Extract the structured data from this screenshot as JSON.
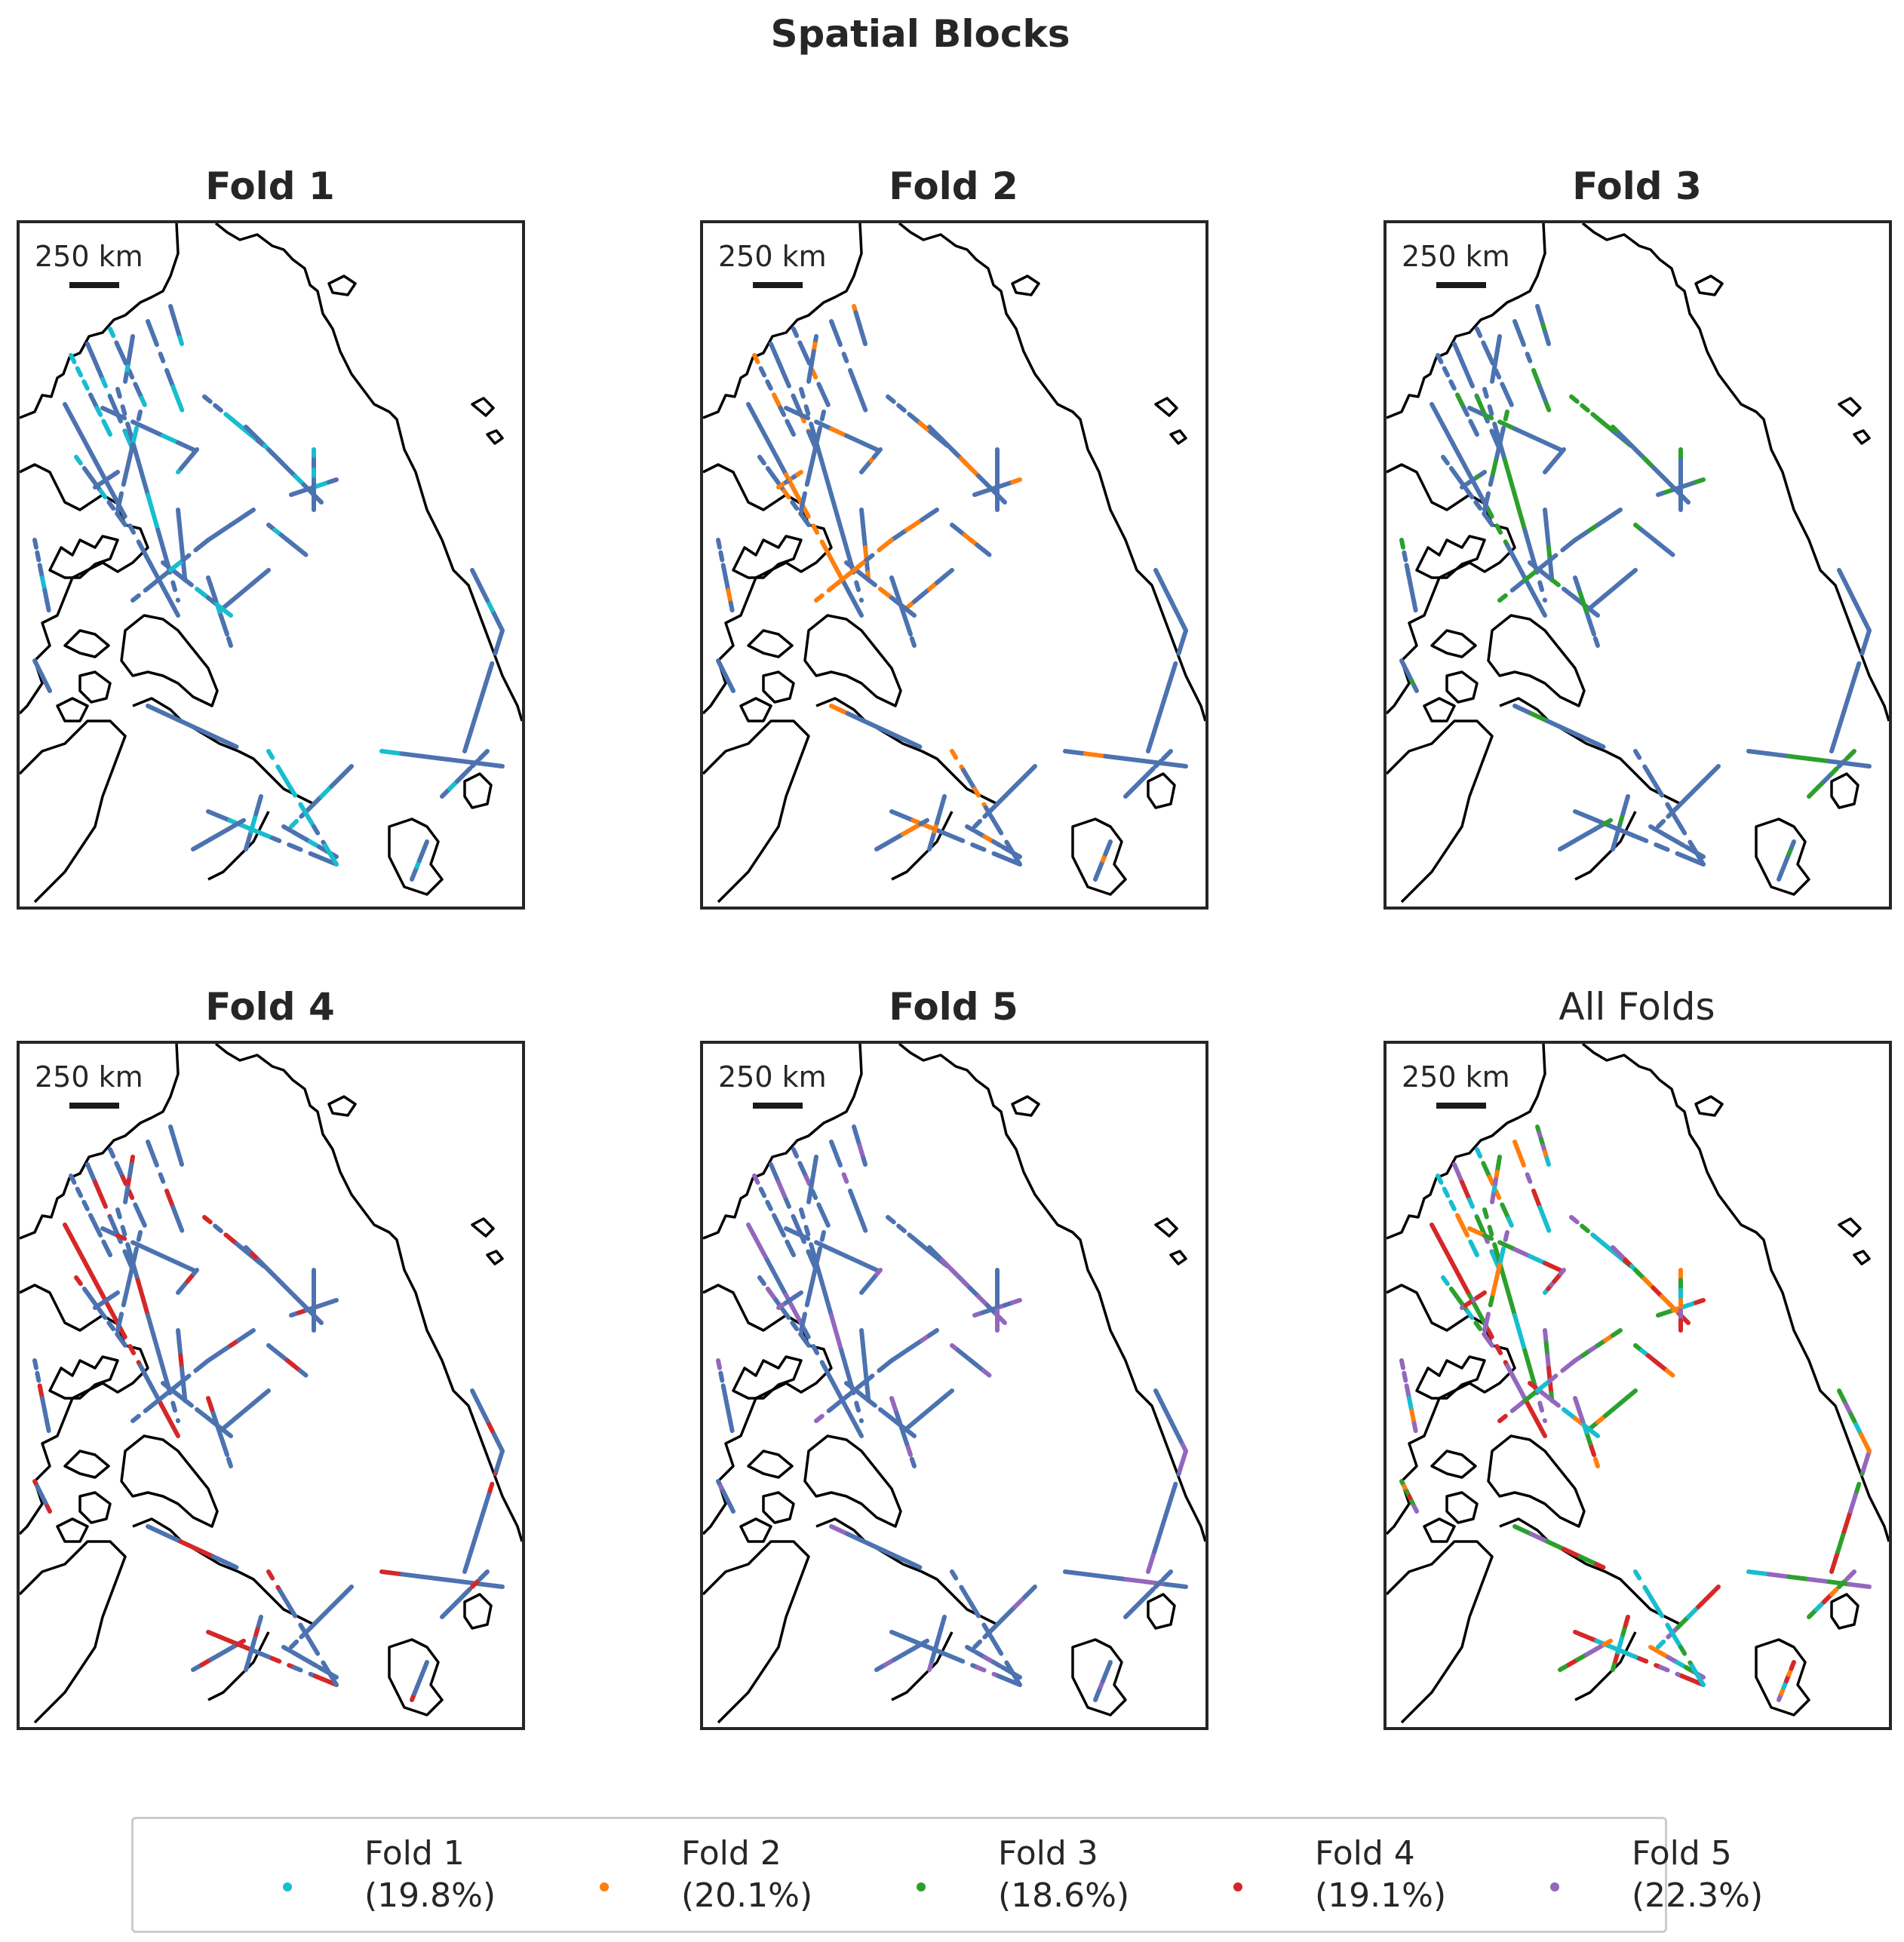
{
  "title": "Spatial Blocks",
  "scale_label": "250 km",
  "base_color": "#4c72b0",
  "land_color": "#000000",
  "panels": [
    {
      "title": "Fold 1",
      "highlight": "#17becf",
      "variant": 0
    },
    {
      "title": "Fold 2",
      "highlight": "#ff7f0e",
      "variant": 1
    },
    {
      "title": "Fold 3",
      "highlight": "#2ca02c",
      "variant": 2
    },
    {
      "title": "Fold 4",
      "highlight": "#d62728",
      "variant": 3
    },
    {
      "title": "Fold 5",
      "highlight": "#9467bd",
      "variant": 4
    },
    {
      "title": "All Folds",
      "highlight": "all",
      "variant": 5
    }
  ],
  "legend": [
    {
      "name": "Fold 1",
      "pct": "(19.8%)",
      "color": "#17becf"
    },
    {
      "name": "Fold 2",
      "pct": "(20.1%)",
      "color": "#ff7f0e"
    },
    {
      "name": "Fold 3",
      "pct": "(18.6%)",
      "color": "#2ca02c"
    },
    {
      "name": "Fold 4",
      "pct": "(19.1%)",
      "color": "#d62728"
    },
    {
      "name": "Fold 5",
      "pct": "(22.3%)",
      "color": "#9467bd"
    }
  ]
}
